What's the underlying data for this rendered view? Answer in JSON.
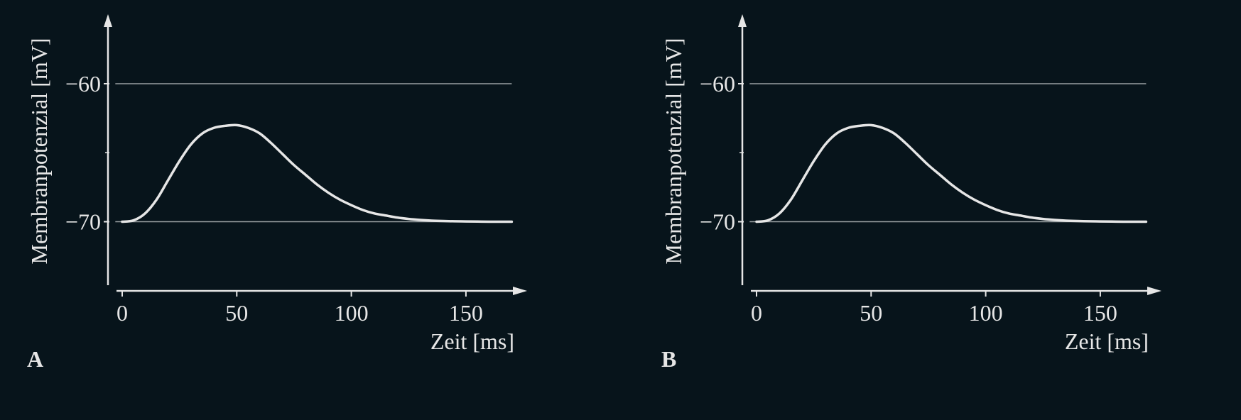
{
  "colors": {
    "background": "#07141b",
    "ink": "#e6e6e6",
    "reference_line": "#9aa0a3"
  },
  "chart_data": [
    {
      "type": "line",
      "panel_label": "A",
      "xlabel": "Zeit [ms]",
      "ylabel": "Membranpotenzial [mV]",
      "xlim": [
        -5,
        175
      ],
      "ylim": [
        -74.5,
        -55
      ],
      "x_ticks": [
        0,
        50,
        100,
        150
      ],
      "x_tick_labels": [
        "0",
        "50",
        "100",
        "150"
      ],
      "y_ticks": [
        -60,
        -70
      ],
      "y_tick_labels": [
        "−60",
        "−70"
      ],
      "y_minor_ticks": [
        -65
      ],
      "reference_lines_y": [
        -60,
        -70
      ],
      "reference_lines_x_range": [
        -3,
        170
      ],
      "grid": false,
      "series": [
        {
          "x": [
            0,
            5,
            10,
            15,
            20,
            25,
            30,
            35,
            40,
            45,
            50,
            55,
            60,
            65,
            70,
            75,
            80,
            85,
            90,
            95,
            100,
            105,
            110,
            115,
            120,
            125,
            130,
            135,
            140,
            145,
            150,
            155,
            160,
            165,
            170
          ],
          "y": [
            -70,
            -69.9,
            -69.4,
            -68.4,
            -67.0,
            -65.6,
            -64.4,
            -63.6,
            -63.2,
            -63.05,
            -63.0,
            -63.2,
            -63.6,
            -64.3,
            -65.1,
            -65.9,
            -66.6,
            -67.3,
            -67.9,
            -68.4,
            -68.8,
            -69.15,
            -69.4,
            -69.55,
            -69.7,
            -69.8,
            -69.87,
            -69.92,
            -69.95,
            -69.97,
            -69.98,
            -69.99,
            -70,
            -70,
            -70
          ]
        }
      ]
    },
    {
      "type": "line",
      "panel_label": "B",
      "xlabel": "Zeit [ms]",
      "ylabel": "Membranpotenzial [mV]",
      "xlim": [
        -5,
        175
      ],
      "ylim": [
        -74.5,
        -55
      ],
      "x_ticks": [
        0,
        50,
        100,
        150
      ],
      "x_tick_labels": [
        "0",
        "50",
        "100",
        "150"
      ],
      "y_ticks": [
        -60,
        -70
      ],
      "y_tick_labels": [
        "−60",
        "−70"
      ],
      "y_minor_ticks": [
        -65
      ],
      "reference_lines_y": [
        -60,
        -70
      ],
      "reference_lines_x_range": [
        -3,
        170
      ],
      "grid": false,
      "series": [
        {
          "x": [
            0,
            5,
            10,
            15,
            20,
            25,
            30,
            35,
            40,
            45,
            50,
            55,
            60,
            65,
            70,
            75,
            80,
            85,
            90,
            95,
            100,
            105,
            110,
            115,
            120,
            125,
            130,
            135,
            140,
            145,
            150,
            155,
            160,
            165,
            170
          ],
          "y": [
            -70,
            -69.9,
            -69.4,
            -68.4,
            -67.0,
            -65.6,
            -64.4,
            -63.6,
            -63.2,
            -63.05,
            -63.0,
            -63.2,
            -63.6,
            -64.3,
            -65.1,
            -65.9,
            -66.6,
            -67.3,
            -67.9,
            -68.4,
            -68.8,
            -69.15,
            -69.4,
            -69.55,
            -69.7,
            -69.8,
            -69.87,
            -69.92,
            -69.95,
            -69.97,
            -69.98,
            -69.99,
            -70,
            -70,
            -70
          ]
        }
      ]
    }
  ]
}
